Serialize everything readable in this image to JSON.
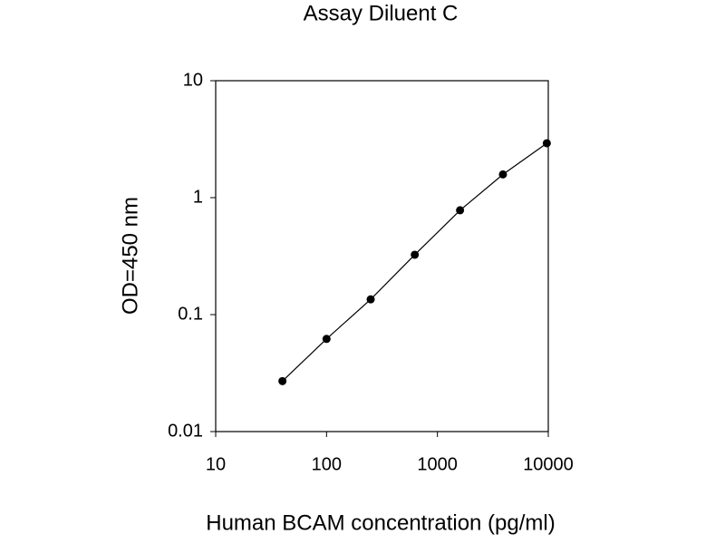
{
  "chart_data": {
    "type": "line",
    "title": "Assay Diluent C",
    "x_label": "Human BCAM concentration (pg/ml)",
    "y_label": "OD=450 nm",
    "x": [
      40,
      100,
      250,
      625,
      1600,
      3900,
      9700
    ],
    "values": [
      0.027,
      0.062,
      0.135,
      0.325,
      0.78,
      1.58,
      2.92
    ],
    "color": "#000000",
    "markers": true,
    "xscale": "log",
    "yscale": "log",
    "xlim": [
      10,
      10000
    ],
    "ylim": [
      0.01,
      10
    ],
    "xticks": [
      10,
      100,
      1000,
      10000
    ],
    "yticks": [
      0.01,
      0.1,
      1,
      10
    ],
    "grid": false
  }
}
